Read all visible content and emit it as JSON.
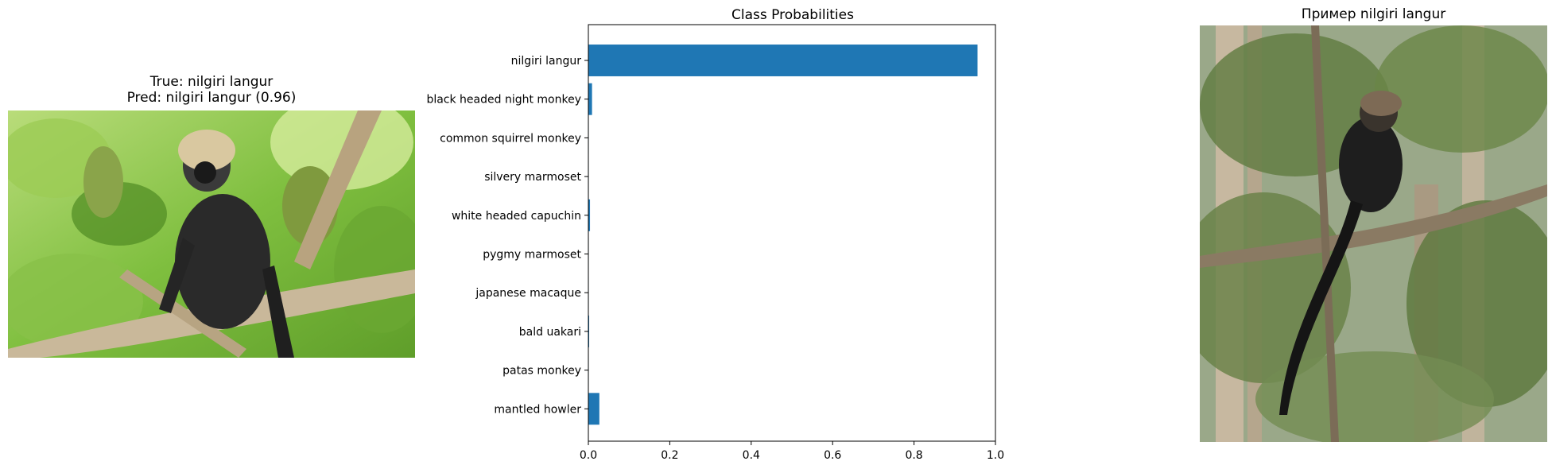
{
  "left_panel": {
    "title_line1": "True: nilgiri langur",
    "title_line2": "Pred: nilgiri langur (0.96)",
    "image_icon": "monkey-on-branch-photo"
  },
  "right_panel": {
    "title": "Пример nilgiri langur",
    "image_icon": "monkey-in-tree-photo"
  },
  "chart_data": {
    "type": "bar",
    "orientation": "horizontal",
    "title": "Class Probabilities",
    "xlabel": "",
    "ylabel": "",
    "categories": [
      "nilgiri langur",
      "black headed night monkey",
      "common squirrel monkey",
      "silvery marmoset",
      "white headed capuchin",
      "pygmy marmoset",
      "japanese macaque",
      "bald uakari",
      "patas monkey",
      "mantled howler"
    ],
    "values": [
      0.956,
      0.009,
      0.001,
      0.001,
      0.004,
      0.001,
      0.001,
      0.002,
      0.001,
      0.027
    ],
    "xlim": [
      0,
      1.0
    ],
    "xticks": [
      "0.0",
      "0.2",
      "0.4",
      "0.6",
      "0.8",
      "1.0"
    ],
    "grid": false,
    "bar_color": "#1f77b4"
  }
}
